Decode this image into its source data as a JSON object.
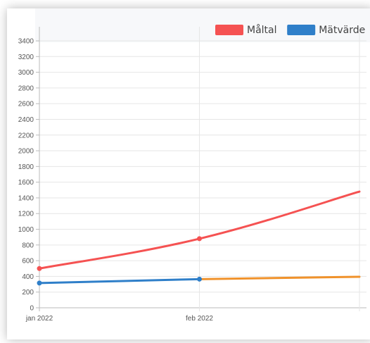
{
  "chart_data": {
    "type": "line",
    "categories": [
      "jan 2022",
      "feb 2022",
      ""
    ],
    "y_ticks": [
      "0",
      "200",
      "400",
      "600",
      "800",
      "1000",
      "1200",
      "1400",
      "1600",
      "1800",
      "2000",
      "2200",
      "2400",
      "2600",
      "2800",
      "3000",
      "3200",
      "3400"
    ],
    "ylim": [
      0,
      3400
    ],
    "grid": true,
    "legend_position": "top-right",
    "series": [
      {
        "name": "Måltal",
        "color": "#f55252",
        "values": [
          500,
          880,
          1480
        ]
      },
      {
        "name": "Mätvärde",
        "color": "#2f7fc9",
        "values": [
          315,
          365,
          null
        ]
      },
      {
        "name": "",
        "color": "#f0922b",
        "values": [
          null,
          365,
          395
        ]
      }
    ]
  }
}
